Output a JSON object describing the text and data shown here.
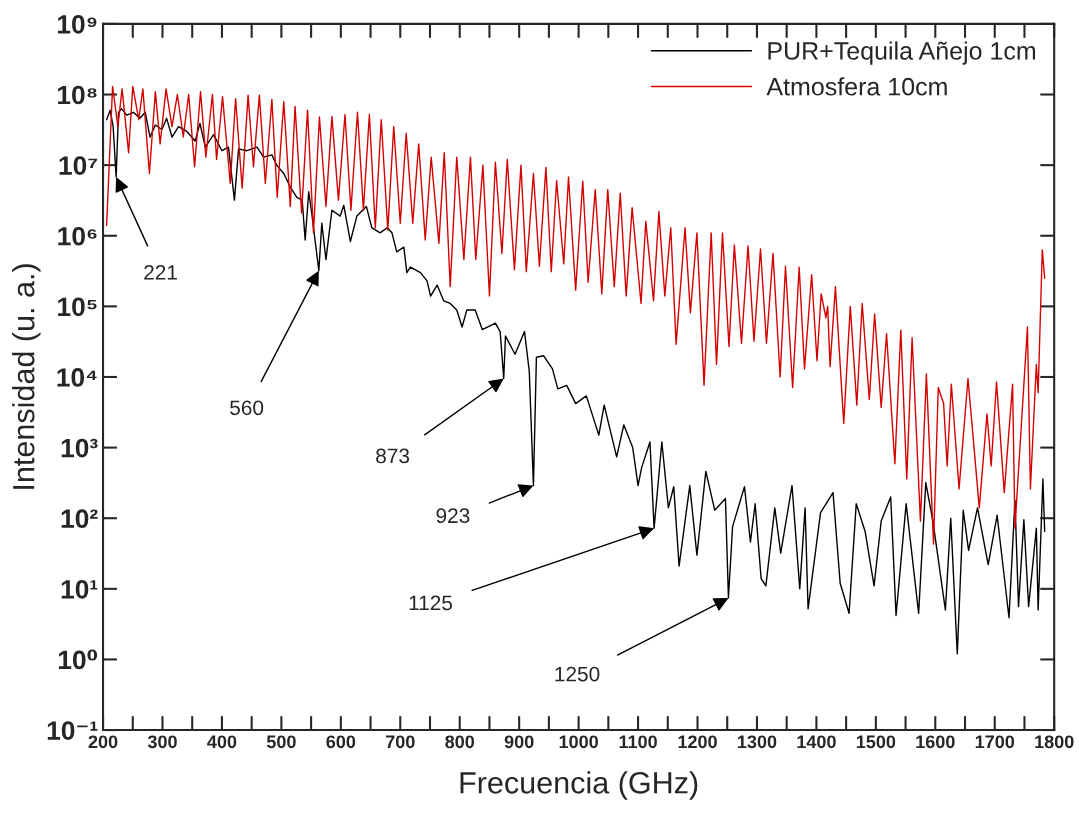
{
  "chart_data": {
    "type": "line",
    "xlabel": "Frecuencia (GHz)",
    "ylabel": "Intensidad (u. a.)",
    "log": "y",
    "legend": "top right",
    "xlim": [
      200,
      1800
    ],
    "xticks": [
      200,
      {
        "value": 250,
        "label": null
      },
      300,
      {
        "value": 350,
        "label": null
      },
      400,
      {
        "value": 450,
        "label": null
      },
      500,
      {
        "value": 550,
        "label": null
      },
      600,
      {
        "value": 650,
        "label": null
      },
      700,
      {
        "value": 750,
        "label": null
      },
      800,
      {
        "value": 850,
        "label": null
      },
      900,
      {
        "value": 950,
        "label": null
      },
      1000,
      {
        "value": 1050,
        "label": null
      },
      1100,
      {
        "value": 1150,
        "label": null
      },
      1200,
      {
        "value": 1250,
        "label": null
      },
      1300,
      {
        "value": 1350,
        "label": null
      },
      1400,
      {
        "value": 1450,
        "label": null
      },
      1500,
      {
        "value": 1550,
        "label": null
      },
      1600,
      {
        "value": 1650,
        "label": null
      },
      1700,
      {
        "value": 1750,
        "label": null
      },
      1800
    ],
    "ylim": [
      0.1,
      1000000000
    ],
    "yticks": [
      {
        "value": 0.1,
        "label": "10⁻¹"
      },
      {
        "value": 1,
        "label": "10⁰"
      },
      {
        "value": 10,
        "label": "10¹"
      },
      {
        "value": 100,
        "label": "10²"
      },
      {
        "value": 1000,
        "label": "10³"
      },
      {
        "value": 10000,
        "label": "10⁴"
      },
      {
        "value": 100000,
        "label": "10⁵"
      },
      {
        "value": 1000000,
        "label": "10⁶"
      },
      {
        "value": 10000000,
        "label": "10⁷"
      },
      {
        "value": 100000000,
        "label": "10⁸"
      },
      {
        "value": 1000000000,
        "label": "10⁹"
      }
    ],
    "series": [
      {
        "name": "PUR+Tequila Añejo 1cm",
        "color": "#000000",
        "x": [
          206,
          212,
          217,
          222,
          226,
          231,
          240,
          251,
          262,
          271,
          279,
          288,
          299,
          307,
          316,
          327,
          341,
          355,
          363,
          372,
          386,
          400,
          411,
          421,
          428,
          442,
          459,
          470,
          484,
          492,
          504,
          515,
          526,
          535,
          540,
          546,
          551,
          563,
          568,
          575,
          585,
          599,
          605,
          616,
          627,
          643,
          652,
          666,
          678,
          686,
          694,
          706,
          711,
          717,
          734,
          745,
          751,
          762,
          773,
          784,
          795,
          804,
          812,
          826,
          838,
          860,
          868,
          874,
          877,
          893,
          909,
          917,
          924,
          929,
          941,
          956,
          965,
          980,
          995,
          1013,
          1034,
          1043,
          1064,
          1076,
          1091,
          1100,
          1106,
          1120,
          1127,
          1140,
          1151,
          1160,
          1169,
          1187,
          1199,
          1214,
          1229,
          1247,
          1252,
          1259,
          1279,
          1289,
          1297,
          1307,
          1315,
          1330,
          1340,
          1359,
          1372,
          1381,
          1386,
          1407,
          1428,
          1440,
          1455,
          1467,
          1482,
          1497,
          1509,
          1525,
          1534,
          1551,
          1572,
          1584,
          1596,
          1617,
          1626,
          1637,
          1647,
          1656,
          1671,
          1689,
          1704,
          1724,
          1734,
          1740,
          1749,
          1757,
          1770,
          1773,
          1781,
          1784
        ],
        "values": [
          44000000.0,
          60000000.0,
          35000000.0,
          6800000.0,
          56000000.0,
          63000000.0,
          51000000.0,
          56000000.0,
          46000000.0,
          56000000.0,
          25000000.0,
          37000000.0,
          32000000.0,
          46000000.0,
          25000000.0,
          35000000.0,
          30000000.0,
          22000000.0,
          39000000.0,
          18000000.0,
          27000000.0,
          16000000.0,
          18000000.0,
          3200000.0,
          17000000.0,
          16000000.0,
          18000000.0,
          13000000.0,
          14000000.0,
          10000000.0,
          7600000.0,
          4900000.0,
          3500000.0,
          3200000.0,
          870000.0,
          4200000.0,
          2100000.0,
          320000.0,
          1500000.0,
          460000.0,
          2300000.0,
          1900000.0,
          2700000.0,
          830000.0,
          1900000.0,
          2600000.0,
          1300000.0,
          1100000.0,
          1300000.0,
          1100000.0,
          590000.0,
          690000.0,
          300000.0,
          360000.0,
          300000.0,
          230000.0,
          140000.0,
          200000.0,
          120000.0,
          110000.0,
          89000.0,
          51000.0,
          89000.0,
          89000.0,
          47000.0,
          58000.0,
          44000.0,
          9500.0,
          38000.0,
          21000.0,
          44000.0,
          12000.0,
          290.0,
          19000.0,
          20000.0,
          13000.0,
          6800.0,
          7600.0,
          4200.0,
          5400.0,
          1500.0,
          4000.0,
          740.0,
          2100.0,
          1000.0,
          290.0,
          520.0,
          1200.0,
          72,
          1200.0,
          140.0,
          280.0,
          21,
          290.0,
          30,
          460.0,
          130.0,
          190.0,
          7.4,
          76,
          280.0,
          46,
          160.0,
          14,
          11,
          140.0,
          32,
          290.0,
          10,
          140.0,
          5.2,
          120.0,
          230.0,
          12,
          4.5,
          160.0,
          65,
          11,
          91,
          200.0,
          4.2,
          160.0,
          4.5,
          320.0,
          91,
          5.0,
          100.0,
          1.2,
          130.0,
          35,
          140.0,
          22,
          110.0,
          3.9,
          180.0,
          5.6,
          95,
          5.6,
          72,
          5.0,
          360.0,
          65
        ]
      },
      {
        "name": "Atmosfera 10cm",
        "color": "#d40000",
        "x": [
          206,
          216,
          225,
          232,
          243,
          250,
          260,
          267,
          278,
          288,
          296,
          306,
          316,
          325,
          335,
          344,
          354,
          364,
          373,
          384,
          391,
          401,
          414,
          423,
          434,
          444,
          453,
          463,
          473,
          484,
          493,
          504,
          515,
          523,
          534,
          544,
          554,
          564,
          575,
          585,
          596,
          607,
          617,
          628,
          638,
          648,
          658,
          668,
          679,
          689,
          700,
          710,
          721,
          731,
          742,
          752,
          765,
          774,
          784,
          795,
          807,
          818,
          827,
          839,
          850,
          860,
          871,
          880,
          892,
          903,
          912,
          924,
          934,
          945,
          954,
          963,
          975,
          983,
          995,
          1007,
          1016,
          1028,
          1039,
          1049,
          1060,
          1070,
          1080,
          1090,
          1105,
          1113,
          1126,
          1135,
          1145,
          1155,
          1164,
          1179,
          1188,
          1199,
          1211,
          1223,
          1232,
          1242,
          1253,
          1262,
          1274,
          1285,
          1295,
          1306,
          1316,
          1327,
          1339,
          1348,
          1360,
          1371,
          1380,
          1392,
          1401,
          1408,
          1416,
          1419,
          1423,
          1432,
          1446,
          1457,
          1468,
          1477,
          1489,
          1498,
          1509,
          1518,
          1532,
          1542,
          1552,
          1561,
          1575,
          1585,
          1597,
          1605,
          1614,
          1620,
          1627,
          1640,
          1655,
          1674,
          1687,
          1694,
          1703,
          1716,
          1730,
          1734,
          1755,
          1760,
          1770,
          1773,
          1780,
          1784
        ],
        "values": [
          1400000.0,
          130000000.0,
          35000000.0,
          120000000.0,
          15000000.0,
          130000000.0,
          44000000.0,
          120000000.0,
          7600000.0,
          110000000.0,
          20000000.0,
          120000000.0,
          35000000.0,
          100000000.0,
          25000000.0,
          100000000.0,
          9500000.0,
          110000000.0,
          13000000.0,
          100000000.0,
          12000000.0,
          93000000.0,
          5500000.0,
          87000000.0,
          4700000.0,
          98000000.0,
          9500000.0,
          98000000.0,
          5500000.0,
          85000000.0,
          3500000.0,
          79000000.0,
          2600000.0,
          68000000.0,
          2100000.0,
          60000000.0,
          1100000.0,
          48000000.0,
          2600000.0,
          49000000.0,
          3200000.0,
          52000000.0,
          2300000.0,
          56000000.0,
          2300000.0,
          52000000.0,
          1300000.0,
          44000000.0,
          1200000.0,
          35000000.0,
          1500000.0,
          28000000.0,
          1500000.0,
          20000000.0,
          870000.0,
          13000000.0,
          780000.0,
          15000000.0,
          190000.0,
          13000000.0,
          460000.0,
          13000000.0,
          460000.0,
          10000000.0,
          140000.0,
          11000000.0,
          560000.0,
          12000000.0,
          330000.0,
          10000000.0,
          310000.0,
          7600000.0,
          370000.0,
          9300000.0,
          310000.0,
          6000000.0,
          400000.0,
          6800000.0,
          170000.0,
          5900000.0,
          220000.0,
          4500000.0,
          150000.0,
          4500000.0,
          190000.0,
          4000000.0,
          140000.0,
          2500000.0,
          110000.0,
          1600000.0,
          120000.0,
          2200000.0,
          140000.0,
          1300000.0,
          29000.0,
          1300000.0,
          81000.0,
          1100000.0,
          7600.0,
          1100000.0,
          15000.0,
          1100000.0,
          27000.0,
          740000.0,
          30000.0,
          720000.0,
          32000.0,
          650000.0,
          30000.0,
          560000.0,
          10000.0,
          370000.0,
          7100.0,
          360000.0,
          13000.0,
          280000.0,
          17000.0,
          150000.0,
          69000.0,
          100000.0,
          14000.0,
          190000.0,
          2200.0,
          100000.0,
          4000.0,
          110000.0,
          4800.0,
          78000.0,
          3700.0,
          41000.0,
          590.0,
          46000.0,
          360.0,
          36000.0,
          91,
          11000.0,
          43,
          7100.0,
          4200.0,
          550.0,
          7900.0,
          260.0,
          9500.0,
          140.0,
          3000.0,
          550.0,
          8500.0,
          230.0,
          7900.0,
          72,
          51000.0,
          260.0,
          15000.0,
          6000.0,
          630000.0,
          250000.0
        ]
      }
    ],
    "annotations": [
      {
        "text": "221",
        "x": 222,
        "y": 6800000.0
      },
      {
        "text": "560",
        "x": 563,
        "y": 320000.0
      },
      {
        "text": "873",
        "x": 874,
        "y": 9500.0
      },
      {
        "text": "923",
        "x": 924,
        "y": 290.0
      },
      {
        "text": "1125",
        "x": 1127,
        "y": 72
      },
      {
        "text": "1250",
        "x": 1252,
        "y": 7.4
      }
    ]
  }
}
